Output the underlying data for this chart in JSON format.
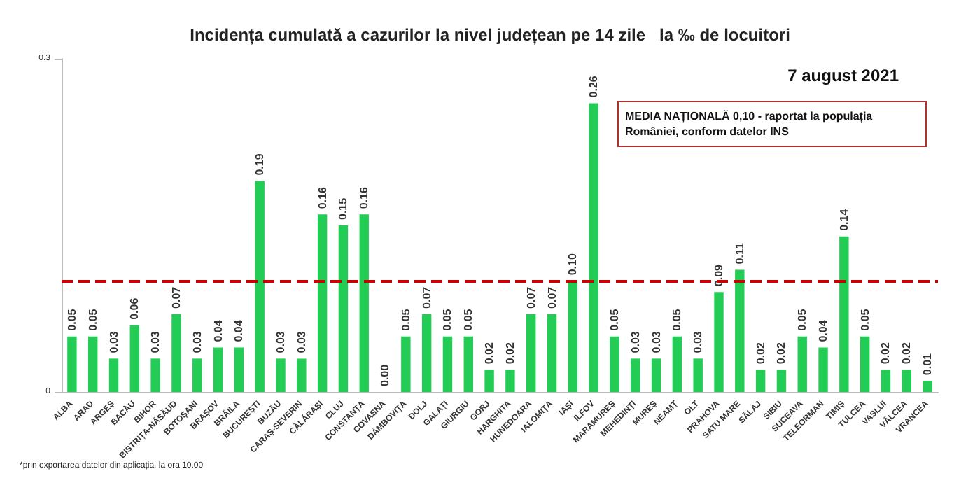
{
  "chart_data": {
    "type": "bar",
    "title": "Incidența cumulată a cazurilor la nivel județean pe 14 zile   la ‰ de locuitori",
    "categories": [
      "ALBA",
      "ARAD",
      "ARGEȘ",
      "BACĂU",
      "BIHOR",
      "BISTRIȚA-NĂSĂUD",
      "BOTOȘANI",
      "BRAȘOV",
      "BRĂILA",
      "BUCUREȘTI",
      "BUZĂU",
      "CARAȘ-SEVERIN",
      "CĂLĂRAȘI",
      "CLUJ",
      "CONSTANȚA",
      "COVASNA",
      "DÂMBOVIȚA",
      "DOLJ",
      "GALAȚI",
      "GIURGIU",
      "GORJ",
      "HARGHITA",
      "HUNEDOARA",
      "IALOMIȚA",
      "IAȘI",
      "ILFOV",
      "MARAMUREȘ",
      "MEHEDINȚI",
      "MUREȘ",
      "NEAMȚ",
      "OLT",
      "PRAHOVA",
      "SATU MARE",
      "SĂLAJ",
      "SIBIU",
      "SUCEAVA",
      "TELEORMAN",
      "TIMIȘ",
      "TULCEA",
      "VASLUI",
      "VÂLCEA",
      "VRANCEA"
    ],
    "values": [
      0.05,
      0.05,
      0.03,
      0.06,
      0.03,
      0.07,
      0.03,
      0.04,
      0.04,
      0.19,
      0.03,
      0.03,
      0.16,
      0.15,
      0.16,
      0.0,
      0.05,
      0.07,
      0.05,
      0.05,
      0.02,
      0.02,
      0.07,
      0.07,
      0.1,
      0.26,
      0.05,
      0.03,
      0.03,
      0.05,
      0.03,
      0.09,
      0.11,
      0.02,
      0.02,
      0.05,
      0.04,
      0.14,
      0.05,
      0.02,
      0.02,
      0.01
    ],
    "value_labels": [
      "0.05",
      "0.05",
      "0.03",
      "0.06",
      "0.03",
      "0.07",
      "0.03",
      "0.04",
      "0.04",
      "0.19",
      "0.03",
      "0.03",
      "0.16",
      "0.15",
      "0.16",
      "0.00",
      "0.05",
      "0.07",
      "0.05",
      "0.05",
      "0.02",
      "0.02",
      "0.07",
      "0.07",
      "0.10",
      "0.26",
      "0.05",
      "0.03",
      "0.03",
      "0.05",
      "0.03",
      "0.09",
      "0.11",
      "0.02",
      "0.02",
      "0.05",
      "0.04",
      "0.14",
      "0.05",
      "0.02",
      "0.02",
      "0.01"
    ],
    "color": "#22cc55",
    "ylim": [
      0,
      0.3
    ],
    "yticks": [
      0,
      0.3
    ],
    "grid": false,
    "ref_lines": [
      {
        "axis": "y",
        "value": 0.1,
        "color": "#cc0000",
        "line_style": "dashed"
      }
    ],
    "annotations": [
      "7 august 2021",
      "MEDIA NAȚIONALĂ 0,10 - raportat la populația României, conform datelor INS",
      "*prin exportarea datelor din aplicația, la ora 10.00"
    ]
  }
}
